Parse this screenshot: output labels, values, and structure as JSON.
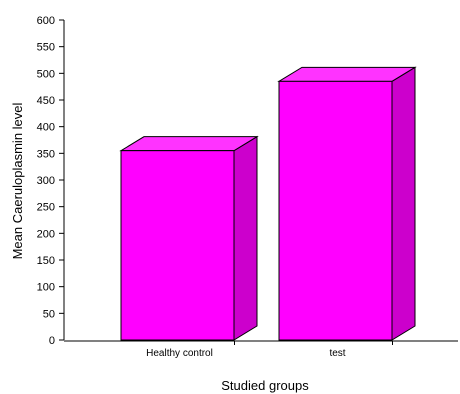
{
  "chart_data": {
    "type": "bar",
    "categories": [
      "Healthy control",
      "test"
    ],
    "values": [
      355,
      485
    ],
    "xlabel": "Studied groups",
    "ylabel": "Mean Caeruloplasmin level",
    "ylim": [
      0,
      600
    ],
    "yticks": [
      0,
      50,
      100,
      150,
      200,
      250,
      300,
      350,
      400,
      450,
      500,
      550,
      600
    ],
    "grid": false,
    "legend": "none",
    "colors": {
      "bar_front": "#ff00ff",
      "bar_top": "#ff33ff",
      "bar_side": "#cc00cc",
      "outline": "#000000"
    }
  }
}
